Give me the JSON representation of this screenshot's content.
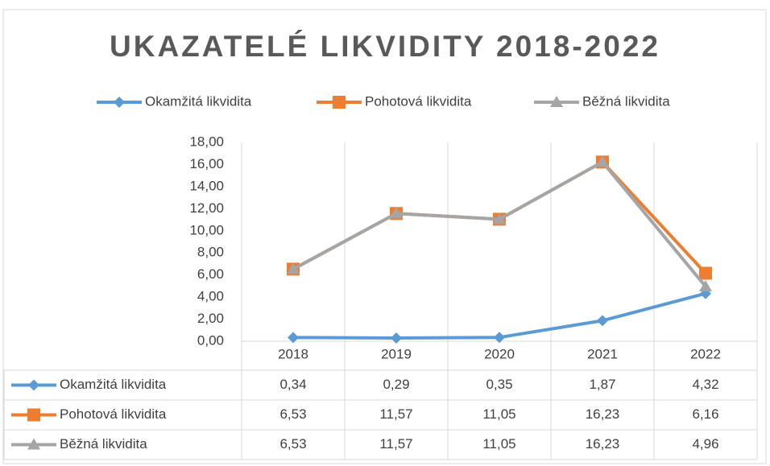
{
  "chart_data": {
    "type": "line",
    "title": "UKAZATELÉ LIKVIDITY 2018-2022",
    "categories": [
      "2018",
      "2019",
      "2020",
      "2021",
      "2022"
    ],
    "series": [
      {
        "name": "Okamžitá likvidita",
        "color": "#5b9bd5",
        "marker": "diamond",
        "values": [
          0.34,
          0.29,
          0.35,
          1.87,
          4.32
        ],
        "value_labels": [
          "0,34",
          "0,29",
          "0,35",
          "1,87",
          "4,32"
        ]
      },
      {
        "name": "Pohotová likvidita",
        "color": "#ed7d31",
        "marker": "square",
        "values": [
          6.53,
          11.57,
          11.05,
          16.23,
          6.16
        ],
        "value_labels": [
          "6,53",
          "11,57",
          "11,05",
          "16,23",
          "6,16"
        ]
      },
      {
        "name": "Běžná likvidita",
        "color": "#a5a5a5",
        "marker": "triangle",
        "values": [
          6.53,
          11.57,
          11.05,
          16.23,
          4.96
        ],
        "value_labels": [
          "6,53",
          "11,57",
          "11,05",
          "16,23",
          "4,96"
        ]
      }
    ],
    "ylim": [
      0,
      18
    ],
    "yticks": [
      {
        "value": 0,
        "label": "0,00"
      },
      {
        "value": 2,
        "label": "2,00"
      },
      {
        "value": 4,
        "label": "4,00"
      },
      {
        "value": 6,
        "label": "6,00"
      },
      {
        "value": 8,
        "label": "8,00"
      },
      {
        "value": 10,
        "label": "10,00"
      },
      {
        "value": 12,
        "label": "12,00"
      },
      {
        "value": 14,
        "label": "14,00"
      },
      {
        "value": 16,
        "label": "16,00"
      },
      {
        "value": 18,
        "label": "18,00"
      }
    ],
    "legend": "top",
    "data_table": true
  }
}
